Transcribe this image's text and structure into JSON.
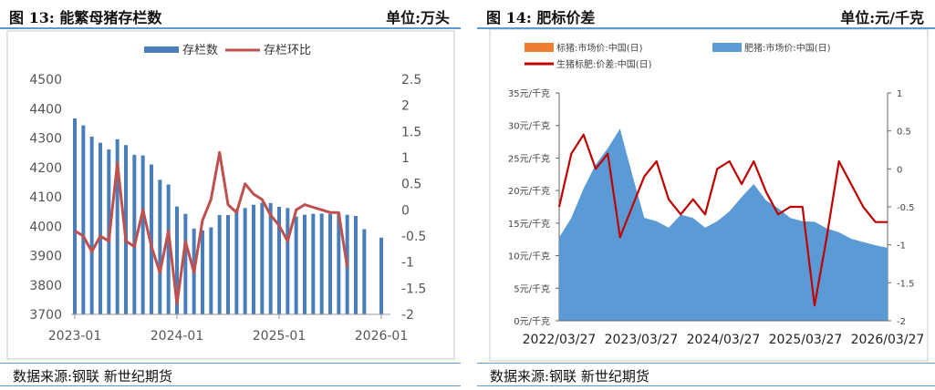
{
  "left": {
    "title": "图 13:    能繁母猪存栏数",
    "unit": "单位:万头",
    "source": "数据来源:钢联   新世纪期货"
  },
  "right": {
    "title": "图 14:    肥标价差",
    "unit": "单位:元/千克",
    "source": "数据来源:钢联   新世纪期货"
  },
  "chart_data": [
    {
      "type": "bar",
      "title": "",
      "legend": [
        "存栏数",
        "存栏环比"
      ],
      "legend_position": "top",
      "colors": {
        "bar": "#4a7ebb",
        "line": "#c0504d"
      },
      "x_ticks": [
        "2023-01",
        "2024-01",
        "2025-01",
        "2026-01"
      ],
      "y_left": {
        "range": [
          3700,
          4500
        ],
        "ticks": [
          "3700",
          "3800",
          "3900",
          "4000",
          "4100",
          "4200",
          "4300",
          "4400",
          "4500"
        ]
      },
      "y_right": {
        "range": [
          -2,
          2.5
        ],
        "ticks": [
          "-2",
          "-1.5",
          "-1",
          "-0.5",
          "0",
          "0.5",
          "1",
          "1.5",
          "2",
          "2.5"
        ]
      },
      "grid": false,
      "months": [
        "2023-01",
        "2023-02",
        "2023-03",
        "2023-04",
        "2023-05",
        "2023-06",
        "2023-07",
        "2023-08",
        "2023-09",
        "2023-10",
        "2023-11",
        "2023-12",
        "2024-01",
        "2024-02",
        "2024-03",
        "2024-04",
        "2024-05",
        "2024-06",
        "2024-07",
        "2024-08",
        "2024-09",
        "2024-10",
        "2024-11",
        "2024-12",
        "2025-01",
        "2025-02",
        "2025-03",
        "2025-04",
        "2025-05",
        "2025-06",
        "2025-07",
        "2025-08",
        "2025-09",
        "2025-10",
        "2025-11",
        "2025-12",
        "2026-01"
      ],
      "series": [
        {
          "name": "存栏数",
          "axis": "left",
          "kind": "bar",
          "values": [
            4367,
            4343,
            4305,
            4284,
            4261,
            4296,
            4276,
            4243,
            4241,
            4210,
            4158,
            4142,
            4067,
            4042,
            3992,
            3986,
            3996,
            4038,
            4038,
            4058,
            4062,
            4073,
            4080,
            4079,
            4066,
            4062,
            4033,
            4039,
            4042,
            4043,
            4042,
            4042,
            4039,
            4035,
            3990,
            null,
            3961
          ]
        },
        {
          "name": "存栏环比",
          "axis": "right",
          "kind": "line",
          "values": [
            -0.4,
            -0.5,
            -0.8,
            -0.5,
            -0.6,
            0.9,
            -0.6,
            -0.7,
            0.0,
            -0.7,
            -1.2,
            -0.4,
            -1.8,
            -0.6,
            -1.2,
            -0.2,
            0.2,
            1.1,
            0.1,
            -0.05,
            0.5,
            0.3,
            0.2,
            -0.1,
            -0.3,
            -0.6,
            0.0,
            0.1,
            0.05,
            0.0,
            -0.05,
            -0.05,
            -1.1,
            null,
            null,
            null,
            null
          ]
        }
      ]
    },
    {
      "type": "area",
      "title": "",
      "legend": [
        "标猪:市场价:中国(日)",
        "肥猪:市场价:中国(日)",
        "生猪标肥:价差:中国(日)"
      ],
      "legend_position": "top",
      "colors": {
        "标猪": "#ed7d31",
        "肥猪": "#5b9bd5",
        "价差": "#c00000"
      },
      "x_ticks": [
        "2022/03/27",
        "2023/03/27",
        "2024/03/27",
        "2025/03/27",
        "2026/03/27"
      ],
      "y_left": {
        "range": [
          0,
          35
        ],
        "ticks": [
          "0元/千克",
          "5元/千克",
          "10元/千克",
          "15元/千克",
          "20元/千克",
          "25元/千克",
          "30元/千克",
          "35元/千克"
        ]
      },
      "y_right": {
        "range": [
          -2,
          1
        ],
        "ticks": [
          "-2",
          "-1.5",
          "-1",
          "-0.5",
          "0",
          "0.5",
          "1"
        ]
      },
      "grid": false,
      "dates": [
        "2022-03",
        "2022-05",
        "2022-07",
        "2022-08",
        "2022-10",
        "2022-11",
        "2022-12",
        "2023-02",
        "2023-04",
        "2023-06",
        "2023-08",
        "2023-10",
        "2023-12",
        "2024-02",
        "2024-04",
        "2024-06",
        "2024-08",
        "2024-10",
        "2024-12",
        "2025-02",
        "2025-04",
        "2025-06",
        "2025-08",
        "2025-09",
        "2025-10",
        "2025-12",
        "2026-02",
        "2026-04"
      ],
      "series": [
        {
          "name": "标猪:市场价:中国(日)",
          "axis": "left",
          "values": [
            12.5,
            15.5,
            20.0,
            23.5,
            26.0,
            29.0,
            22.0,
            15.5,
            15.0,
            14.0,
            16.0,
            15.5,
            14.0,
            15.0,
            16.5,
            18.5,
            20.5,
            18.0,
            17.0,
            15.5,
            15.0,
            15.0,
            14.0,
            13.5,
            12.5,
            12.0,
            11.5,
            11.0
          ]
        },
        {
          "name": "肥猪:市场价:中国(日)",
          "axis": "left",
          "values": [
            12.8,
            15.8,
            20.3,
            24.0,
            26.5,
            29.5,
            22.5,
            15.8,
            15.3,
            14.3,
            16.3,
            15.8,
            14.3,
            15.3,
            16.8,
            19.0,
            21.0,
            18.5,
            17.3,
            15.8,
            15.3,
            15.2,
            14.2,
            13.6,
            12.6,
            12.1,
            11.6,
            11.2
          ]
        },
        {
          "name": "生猪标肥:价差:中国(日)",
          "axis": "right",
          "values": [
            -0.5,
            0.2,
            0.45,
            0.0,
            0.2,
            -0.9,
            -0.5,
            -0.1,
            0.1,
            -0.4,
            -0.6,
            -0.4,
            -0.6,
            0.0,
            0.1,
            -0.2,
            0.1,
            -0.3,
            -0.6,
            -0.5,
            -0.5,
            -1.8,
            -0.9,
            0.1,
            -0.2,
            -0.5,
            -0.7,
            -0.7
          ]
        }
      ]
    }
  ]
}
